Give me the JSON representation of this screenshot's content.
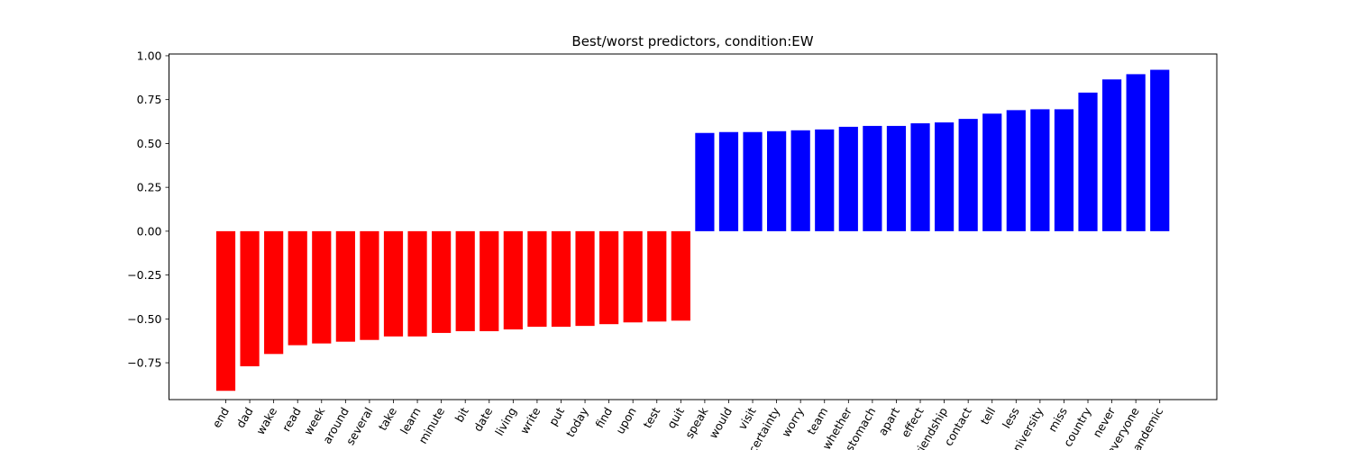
{
  "chart_data": {
    "type": "bar",
    "title": "Best/worst predictors, condition:EW",
    "xlabel": "",
    "ylabel": "",
    "ylim": [
      -0.96,
      1.01
    ],
    "yticks": [
      -0.75,
      -0.5,
      -0.25,
      0.0,
      0.25,
      0.5,
      0.75,
      1.0
    ],
    "ytick_labels": [
      "−0.75",
      "−0.50",
      "−0.25",
      "0.00",
      "0.25",
      "0.50",
      "0.75",
      "1.00"
    ],
    "grid": false,
    "colors": {
      "negative": "#ff0000",
      "positive": "#0000ff"
    },
    "categories": [
      "end",
      "dad",
      "wake",
      "read",
      "week",
      "around",
      "several",
      "take",
      "learn",
      "minute",
      "bit",
      "date",
      "living",
      "write",
      "put",
      "today",
      "find",
      "upon",
      "test",
      "quit",
      "speak",
      "would",
      "visit",
      "certainty",
      "worry",
      "team",
      "whether",
      "stomach",
      "apart",
      "effect",
      "friendship",
      "contact",
      "tell",
      "less",
      "university",
      "miss",
      "country",
      "never",
      "everyone",
      "pandemic"
    ],
    "values": [
      -0.91,
      -0.77,
      -0.7,
      -0.65,
      -0.64,
      -0.63,
      -0.62,
      -0.6,
      -0.6,
      -0.58,
      -0.57,
      -0.57,
      -0.56,
      -0.545,
      -0.545,
      -0.54,
      -0.53,
      -0.52,
      -0.515,
      -0.51,
      0.56,
      0.565,
      0.565,
      0.57,
      0.575,
      0.58,
      0.595,
      0.6,
      0.6,
      0.615,
      0.62,
      0.64,
      0.67,
      0.69,
      0.695,
      0.695,
      0.79,
      0.865,
      0.895,
      0.92
    ]
  }
}
